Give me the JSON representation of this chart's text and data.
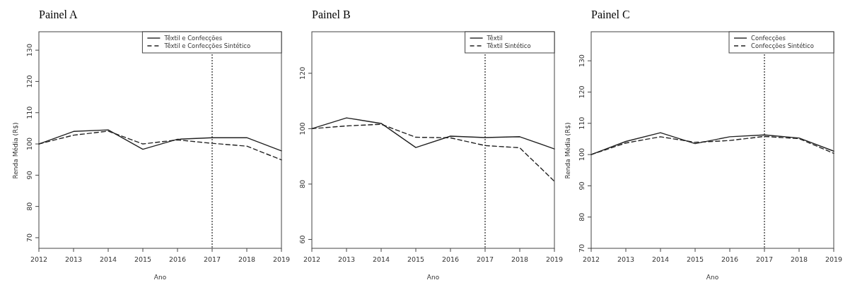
{
  "chart_data": [
    {
      "type": "line",
      "title": "Painel A",
      "xlabel": "Ano",
      "ylabel": "Renda Média (R$)",
      "x": [
        2012,
        2013,
        2014,
        2015,
        2016,
        2017,
        2018,
        2019
      ],
      "xlim": [
        2012,
        2019
      ],
      "xticks": [
        2012,
        2013,
        2014,
        2015,
        2016,
        2017,
        2018,
        2019
      ],
      "ylim": [
        66.6,
        135.9
      ],
      "yticks": [
        70,
        80,
        90,
        100,
        110,
        120,
        130
      ],
      "legend": "top right",
      "grid": false,
      "series": [
        {
          "name": "Têxtil e Confecções",
          "color": "#222222",
          "line_style": "solid",
          "values": [
            100,
            104,
            104.5,
            98.3,
            101.5,
            102,
            102,
            97.8
          ]
        },
        {
          "name": "Têxtil e Confecções Sintético",
          "color": "#222222",
          "line_style": "dashed",
          "values": [
            100,
            102.8,
            104.1,
            100,
            101.3,
            100.2,
            99.3,
            94.9
          ]
        }
      ],
      "ref_lines": [
        {
          "axis": "x",
          "value": 2017,
          "line_style": "dotted",
          "color": "#222222"
        }
      ]
    },
    {
      "type": "line",
      "title": "Painel B",
      "xlabel": "Ano",
      "x": [
        2012,
        2013,
        2014,
        2015,
        2016,
        2017,
        2018,
        2019
      ],
      "xlim": [
        2012,
        2019
      ],
      "xticks": [
        2012,
        2013,
        2014,
        2015,
        2016,
        2017,
        2018,
        2019
      ],
      "ylim": [
        56.8,
        135
      ],
      "yticks": [
        60,
        80,
        100,
        120
      ],
      "legend": "top right",
      "grid": false,
      "series": [
        {
          "name": "Têxtil",
          "color": "#222222",
          "line_style": "solid",
          "values": [
            100,
            103.9,
            101.9,
            93.2,
            97.3,
            96.8,
            97.1,
            92.7
          ]
        },
        {
          "name": "Têxtil Sintético",
          "color": "#222222",
          "line_style": "dashed",
          "values": [
            100,
            101,
            101.6,
            96.9,
            96.7,
            93.9,
            93.1,
            81
          ]
        }
      ],
      "ref_lines": [
        {
          "axis": "x",
          "value": 2017,
          "line_style": "dotted",
          "color": "#222222"
        }
      ]
    },
    {
      "type": "line",
      "title": "Painel C",
      "xlabel": "Ano",
      "ylabel": "Renda Média (R$)",
      "x": [
        2012,
        2013,
        2014,
        2015,
        2016,
        2017,
        2018,
        2019
      ],
      "xlim": [
        2012,
        2019
      ],
      "xticks": [
        2012,
        2013,
        2014,
        2015,
        2016,
        2017,
        2018,
        2019
      ],
      "ylim": [
        70,
        139.3
      ],
      "yticks": [
        70,
        80,
        90,
        100,
        110,
        120,
        130
      ],
      "legend": "top right",
      "grid": false,
      "series": [
        {
          "name": "Confecções",
          "color": "#222222",
          "line_style": "solid",
          "values": [
            100,
            104.2,
            107,
            103.5,
            105.7,
            106.3,
            105.3,
            101.1
          ]
        },
        {
          "name": "Confecções Sintético",
          "color": "#222222",
          "line_style": "dashed",
          "values": [
            100,
            103.7,
            105.7,
            103.9,
            104.5,
            105.8,
            105.1,
            100.4
          ]
        }
      ],
      "ref_lines": [
        {
          "axis": "x",
          "value": 2017,
          "line_style": "dotted",
          "color": "#222222"
        }
      ]
    }
  ]
}
